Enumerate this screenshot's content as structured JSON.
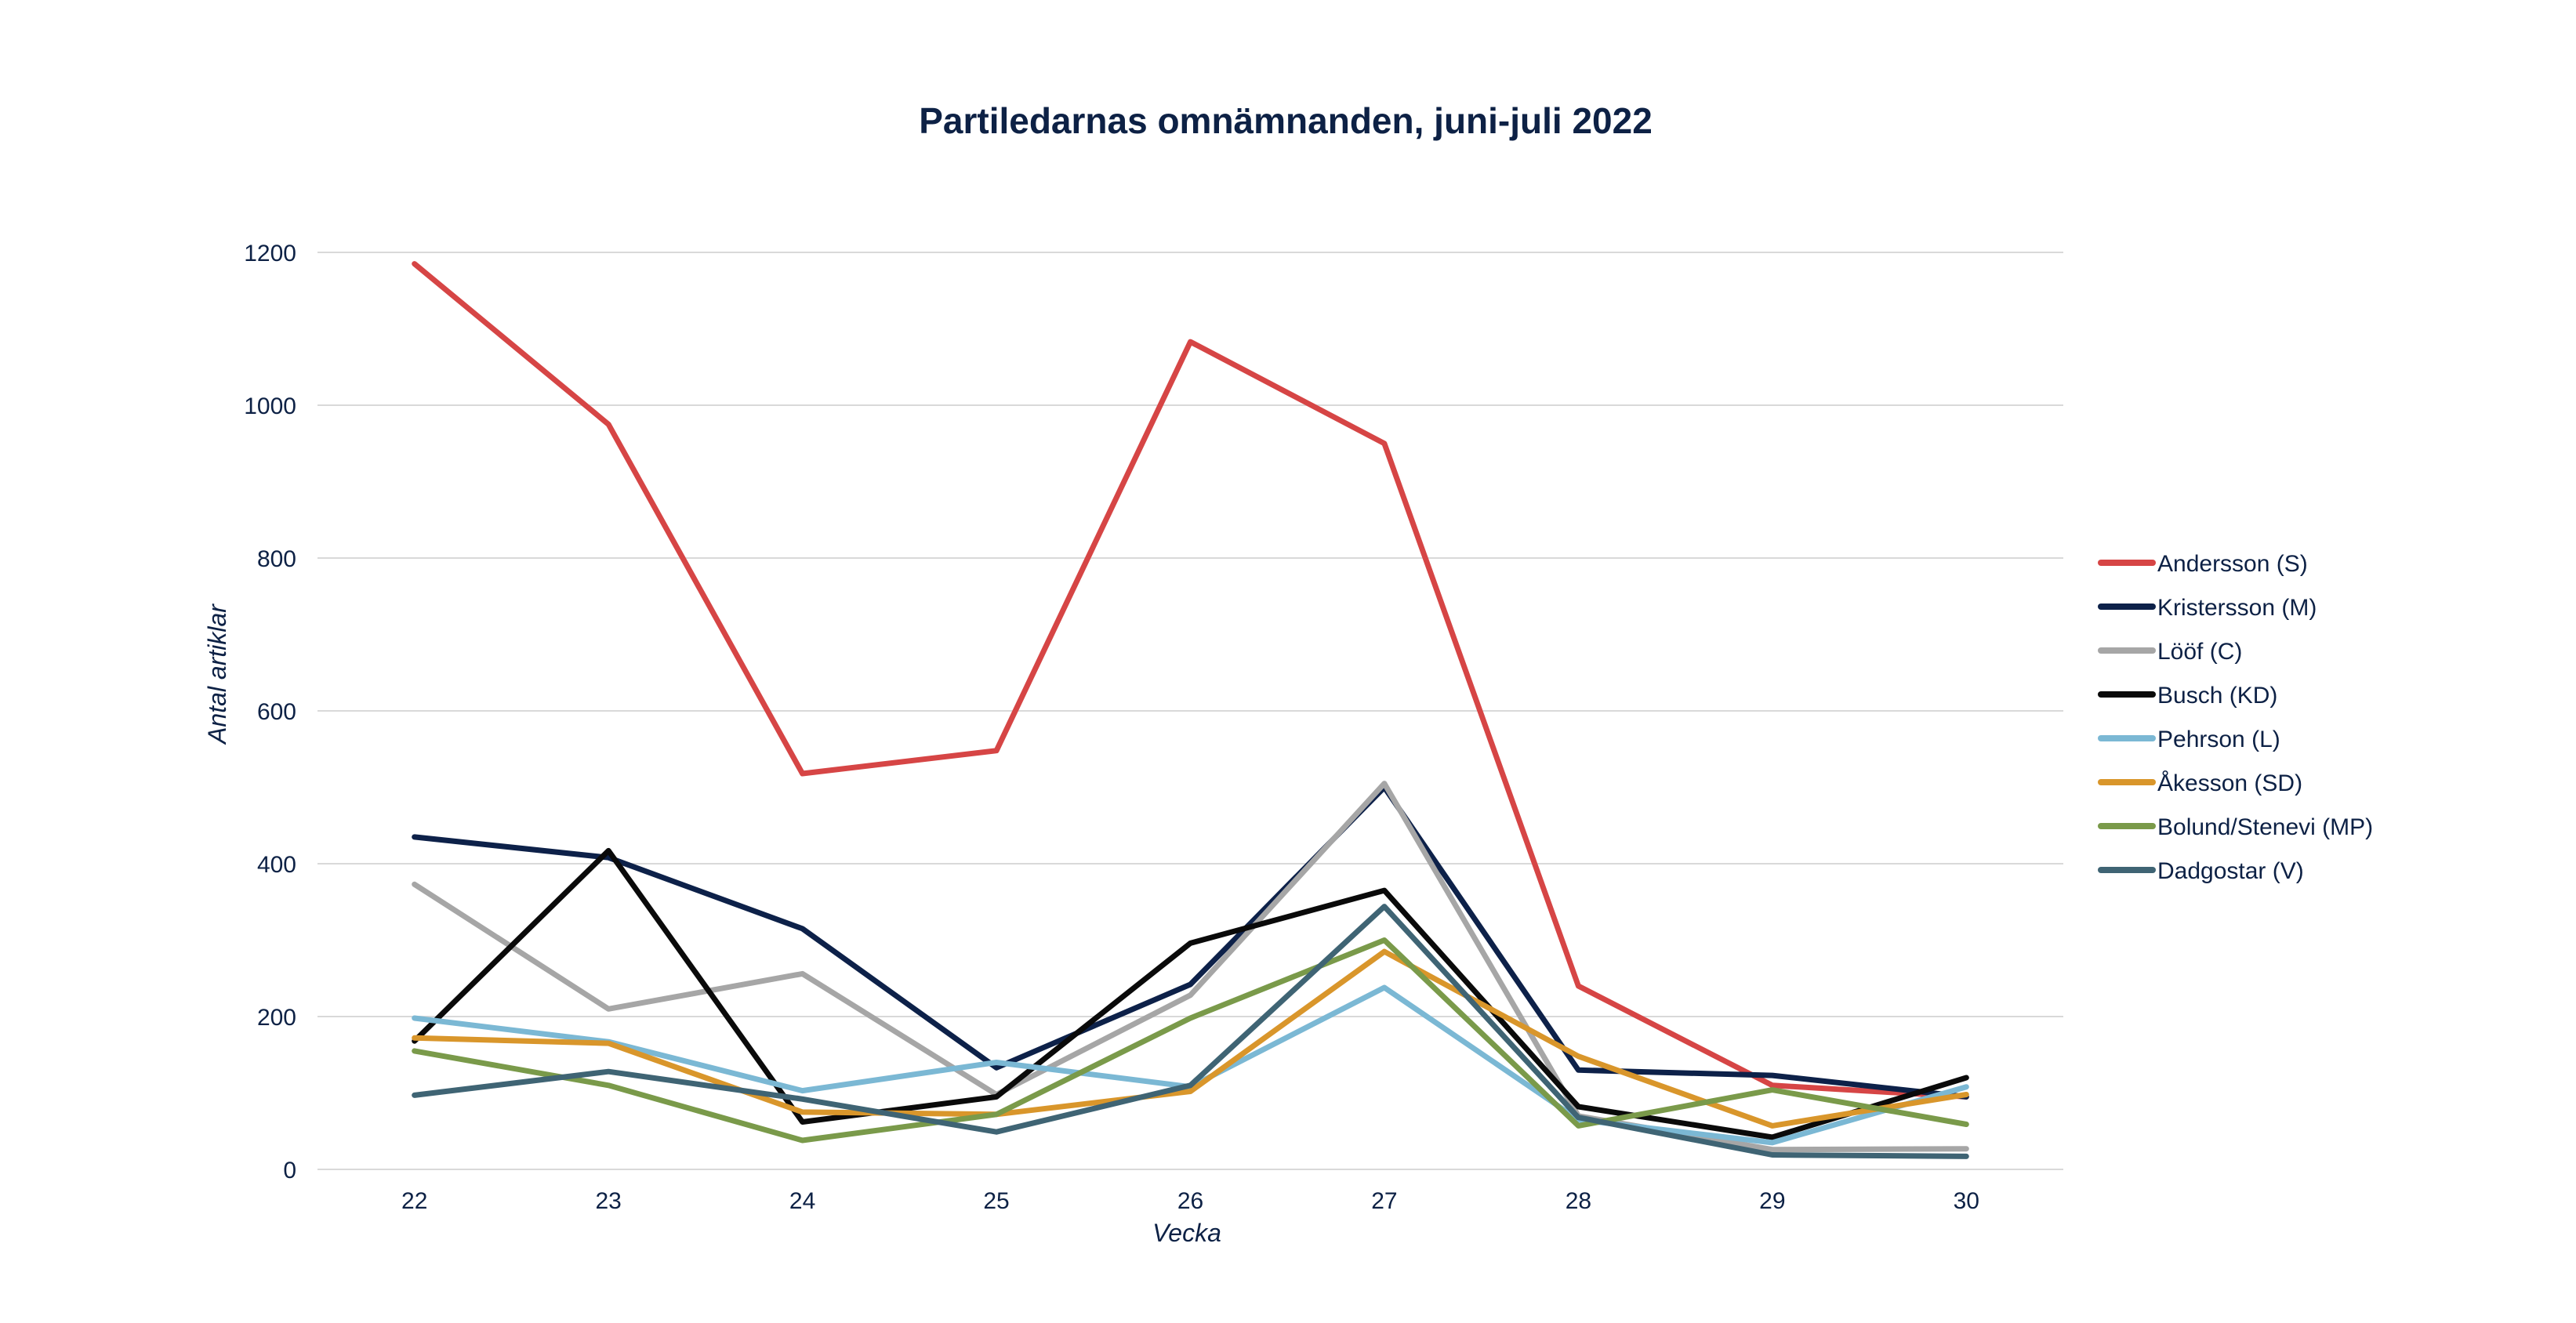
{
  "chart_data": {
    "type": "line",
    "title": "Partiledarnas omnämnanden, juni-juli 2022",
    "xlabel": "Vecka",
    "ylabel": "Antal artiklar",
    "x": [
      "22",
      "23",
      "24",
      "25",
      "26",
      "27",
      "28",
      "29",
      "30"
    ],
    "y_ticks": [
      0,
      200,
      400,
      600,
      800,
      1000,
      1200
    ],
    "ylim": [
      0,
      1200
    ],
    "grid": true,
    "legend_position": "right",
    "series": [
      {
        "name": "Andersson (S)",
        "color": "#d64545",
        "values": [
          1185,
          975,
          518,
          548,
          1083,
          950,
          240,
          110,
          95
        ]
      },
      {
        "name": "Kristersson (M)",
        "color": "#0d2149",
        "values": [
          435,
          408,
          315,
          133,
          242,
          500,
          130,
          123,
          95
        ]
      },
      {
        "name": "Lööf (C)",
        "color": "#a6a6a6",
        "values": [
          373,
          210,
          256,
          98,
          228,
          505,
          70,
          26,
          27
        ]
      },
      {
        "name": "Busch (KD)",
        "color": "#0a0a0a",
        "values": [
          168,
          417,
          62,
          95,
          296,
          365,
          82,
          42,
          120
        ]
      },
      {
        "name": "Pehrson (L)",
        "color": "#7bb8d4",
        "values": [
          198,
          167,
          103,
          140,
          108,
          238,
          65,
          35,
          108
        ]
      },
      {
        "name": "Åkesson (SD)",
        "color": "#d9962b",
        "values": [
          172,
          165,
          75,
          72,
          102,
          285,
          148,
          57,
          98
        ]
      },
      {
        "name": "Bolund/Stenevi (MP)",
        "color": "#7a9a4a",
        "values": [
          155,
          110,
          38,
          72,
          198,
          300,
          57,
          104,
          59
        ]
      },
      {
        "name": "Dadgostar (V)",
        "color": "#3f6474",
        "values": [
          97,
          128,
          92,
          49,
          110,
          344,
          68,
          19,
          17
        ]
      }
    ]
  }
}
